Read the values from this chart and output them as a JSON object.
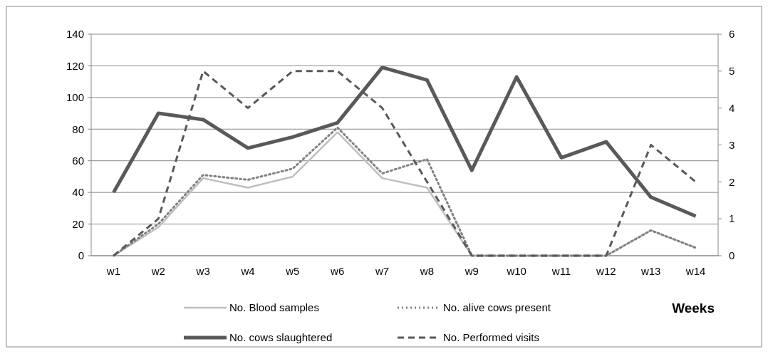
{
  "chart_data": {
    "type": "line",
    "xlabel": "Weeks",
    "categories": [
      "w1",
      "w2",
      "w3",
      "w4",
      "w5",
      "w6",
      "w7",
      "w8",
      "w9",
      "w10",
      "w11",
      "w12",
      "w13",
      "w14"
    ],
    "series": [
      {
        "name": "No. Blood samples",
        "color": "#bfbfbf",
        "line_style": "solid",
        "values": [
          0,
          18,
          49,
          43,
          50,
          78,
          49,
          43,
          0,
          0,
          0,
          0,
          16,
          5
        ]
      },
      {
        "name": "No. alive cows present",
        "color": "#808080",
        "line_style": "dotted",
        "values": [
          0,
          20,
          51,
          48,
          55,
          81,
          52,
          61,
          0,
          0,
          0,
          0,
          16,
          5
        ]
      },
      {
        "name": "No. cows slaughtered",
        "color": "#595959",
        "line_style": "solid",
        "values": [
          40,
          90,
          86,
          68,
          75,
          84,
          119,
          111,
          54,
          113,
          62,
          72,
          37,
          25
        ]
      },
      {
        "name": "No. Performed visits",
        "color": "#595959",
        "line_style": "dashed",
        "axis": "y2",
        "values": [
          0,
          1,
          5,
          4,
          5,
          5,
          4,
          2,
          0,
          0,
          0,
          0,
          3,
          2
        ]
      }
    ],
    "ylim": [
      0,
      140
    ],
    "yticks": [
      0,
      20,
      40,
      60,
      80,
      100,
      120,
      140
    ],
    "y2lim": [
      0,
      6
    ],
    "y2ticks": [
      0,
      1,
      2,
      3,
      4,
      5,
      6
    ],
    "grid": "y",
    "legend": "bottom",
    "marker": "none"
  }
}
